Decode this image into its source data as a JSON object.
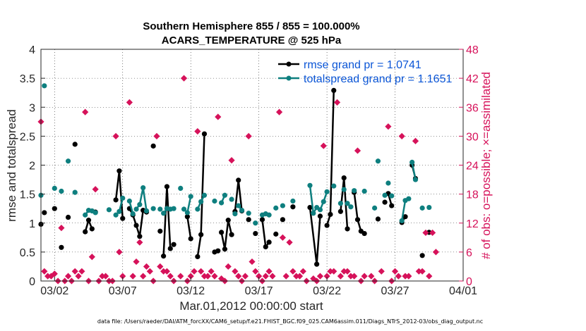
{
  "chart_data": {
    "type": "line",
    "title": [
      "Southern Hemisphere 855 / 855 = 100.000%",
      "ACARS_TEMPERATURE @ 525 hPa"
    ],
    "xlabel": "Mar.01,2012 00:00:00 start",
    "ylabel": "rmse and totalspread",
    "ylabel_right": "# of obs: o=possible; ×=assimilated",
    "xlim": [
      0,
      31
    ],
    "ylim": [
      0,
      4
    ],
    "ylim_right": [
      0,
      48
    ],
    "xticks": [
      {
        "v": 1,
        "label": "03/02"
      },
      {
        "v": 6,
        "label": "03/07"
      },
      {
        "v": 11,
        "label": "03/12"
      },
      {
        "v": 16,
        "label": "03/17"
      },
      {
        "v": 21,
        "label": "03/22"
      },
      {
        "v": 26,
        "label": "03/27"
      },
      {
        "v": 31,
        "label": "04/01"
      }
    ],
    "yticks": [
      "0",
      "0.5",
      "1",
      "1.5",
      "2",
      "2.5",
      "3",
      "3.5",
      "4"
    ],
    "yticks_right": [
      "0",
      "6",
      "12",
      "18",
      "24",
      "30",
      "36",
      "42",
      "48"
    ],
    "legend": [
      "rmse grand pr = 1.0741",
      "totalspread grand pr = 1.1651"
    ],
    "series": [
      {
        "name": "rmse",
        "color": "#000000",
        "segments": [
          [
            [
              0.0,
              0.98
            ]
          ],
          [
            [
              0.25,
              1.18
            ]
          ],
          [
            [
              1.0,
              1.25
            ]
          ],
          [
            [
              1.5,
              0.58
            ]
          ],
          [
            [
              2.0,
              1.1
            ]
          ],
          [
            [
              2.5,
              2.36
            ]
          ],
          [
            [
              3.25,
              0.85
            ],
            [
              3.5,
              1.05
            ],
            [
              3.75,
              0.9
            ]
          ],
          [
            [
              4.0,
              1.19
            ]
          ],
          [
            [
              5.5,
              1.4
            ],
            [
              5.75,
              1.9
            ],
            [
              6.0,
              1.08
            ]
          ],
          [
            [
              6.5,
              1.25
            ],
            [
              6.75,
              1.14
            ],
            [
              7.0,
              0.96
            ],
            [
              7.25,
              0.77
            ],
            [
              7.5,
              1.22
            ],
            [
              7.75,
              1.19
            ]
          ],
          [
            [
              8.25,
              2.33
            ]
          ],
          [
            [
              8.75,
              0.86
            ]
          ],
          [
            [
              9.0,
              0.43
            ],
            [
              9.25,
              1.63
            ],
            [
              9.5,
              0.56
            ]
          ],
          [
            [
              9.75,
              0.63
            ]
          ],
          [
            [
              10.75,
              1.11
            ],
            [
              11.0,
              0.73
            ]
          ],
          [
            [
              11.5,
              0.42
            ],
            [
              11.75,
              0.8
            ],
            [
              12.0,
              2.54
            ]
          ],
          [
            [
              12.75,
              0.5
            ],
            [
              13.0,
              0.52
            ]
          ],
          [
            [
              13.25,
              0.84
            ],
            [
              13.5,
              0.55
            ],
            [
              13.75,
              1.05
            ],
            [
              14.0,
              0.8
            ]
          ],
          [
            [
              14.25,
              1.2
            ],
            [
              14.5,
              1.74
            ],
            [
              14.75,
              1.21
            ]
          ],
          [
            [
              15.25,
              1.06
            ]
          ],
          [
            [
              15.75,
              0.82
            ]
          ],
          [
            [
              16.25,
              1.06
            ],
            [
              16.5,
              0.59
            ],
            [
              16.75,
              0.67
            ]
          ],
          [
            [
              17.25,
              0.81
            ]
          ],
          [
            [
              17.75,
              1.06
            ]
          ],
          [
            [
              18.5,
              1.28
            ]
          ],
          [
            [
              19.75,
              1.27
            ],
            [
              20.25,
              0.29
            ],
            [
              20.5,
              1.12
            ]
          ],
          [
            [
              21.0,
              0.96
            ],
            [
              21.25,
              1.15
            ],
            [
              21.5,
              3.29
            ]
          ],
          [
            [
              22.0,
              1.2
            ],
            [
              22.25,
              1.78
            ],
            [
              22.5,
              0.9
            ]
          ],
          [
            [
              23.0,
              1.53
            ],
            [
              23.25,
              1.06
            ],
            [
              23.5,
              0.86
            ]
          ],
          [
            [
              23.75,
              0.82
            ]
          ],
          [
            [
              24.75,
              1.07
            ]
          ],
          [
            [
              25.25,
              1.36
            ]
          ],
          [
            [
              25.5,
              1.51
            ],
            [
              25.75,
              1.3
            ]
          ],
          [
            [
              26.5,
              1.01
            ],
            [
              26.75,
              1.11
            ]
          ],
          [
            [
              27.25,
              2.0
            ],
            [
              27.5,
              1.77
            ]
          ],
          [
            [
              28.0,
              0.44
            ]
          ],
          [
            [
              28.5,
              0.84
            ]
          ]
        ]
      },
      {
        "name": "totalspread",
        "color": "#0e7f7f",
        "segments": [
          [
            [
              0.0,
              1.48
            ]
          ],
          [
            [
              0.25,
              3.37
            ]
          ],
          [
            [
              1.0,
              1.6
            ]
          ],
          [
            [
              1.5,
              1.55
            ]
          ],
          [
            [
              2.0,
              2.07
            ]
          ],
          [
            [
              2.5,
              1.53
            ]
          ],
          [
            [
              3.25,
              1.14
            ],
            [
              3.5,
              1.22
            ],
            [
              3.75,
              1.21
            ]
          ],
          [
            [
              4.0,
              1.18
            ]
          ],
          [
            [
              5.0,
              1.23
            ]
          ],
          [
            [
              5.5,
              1.14
            ],
            [
              5.75,
              1.2
            ],
            [
              6.0,
              1.43
            ]
          ],
          [
            [
              6.5,
              1.38
            ],
            [
              6.75,
              1.16
            ]
          ],
          [
            [
              7.0,
              1.24
            ],
            [
              7.25,
              1.32
            ],
            [
              7.5,
              1.61
            ],
            [
              7.75,
              1.21
            ]
          ],
          [
            [
              8.25,
              1.25
            ]
          ],
          [
            [
              8.75,
              1.24
            ]
          ],
          [
            [
              9.0,
              1.17
            ],
            [
              9.25,
              1.25
            ]
          ],
          [
            [
              9.5,
              1.24
            ]
          ],
          [
            [
              9.75,
              1.25
            ]
          ],
          [
            [
              10.25,
              1.6
            ]
          ],
          [
            [
              10.5,
              1.24
            ]
          ],
          [
            [
              10.75,
              1.18
            ],
            [
              11.0,
              1.46
            ]
          ],
          [
            [
              11.5,
              1.24
            ],
            [
              11.75,
              1.37
            ],
            [
              12.0,
              1.48
            ]
          ],
          [
            [
              12.75,
              1.38
            ]
          ],
          [
            [
              13.25,
              1.35
            ],
            [
              13.5,
              1.48
            ]
          ],
          [
            [
              14.0,
              1.41
            ]
          ],
          [
            [
              14.25,
              1.16
            ]
          ],
          [
            [
              14.5,
              1.3
            ],
            [
              14.75,
              1.22
            ]
          ],
          [
            [
              15.25,
              1.17
            ]
          ],
          [
            [
              15.75,
              1.0
            ]
          ],
          [
            [
              16.25,
              1.14
            ],
            [
              16.5,
              1.16
            ]
          ],
          [
            [
              16.75,
              1.14
            ]
          ],
          [
            [
              17.25,
              1.26
            ]
          ],
          [
            [
              17.75,
              1.3
            ]
          ],
          [
            [
              18.5,
              1.38
            ]
          ],
          [
            [
              19.75,
              1.65
            ],
            [
              20.0,
              1.17
            ],
            [
              20.25,
              1.27
            ]
          ],
          [
            [
              20.5,
              1.23
            ],
            [
              20.75,
              1.37
            ],
            [
              21.0,
              1.54
            ]
          ],
          [
            [
              21.5,
              1.64
            ]
          ],
          [
            [
              22.0,
              1.34
            ]
          ],
          [
            [
              22.25,
              1.58
            ]
          ],
          [
            [
              22.5,
              1.34
            ],
            [
              22.75,
              1.28
            ]
          ],
          [
            [
              23.0,
              1.56
            ]
          ],
          [
            [
              23.75,
              1.55
            ]
          ],
          [
            [
              24.5,
              1.26
            ]
          ],
          [
            [
              24.75,
              2.07
            ]
          ],
          [
            [
              25.25,
              1.48
            ]
          ],
          [
            [
              25.5,
              1.69
            ]
          ],
          [
            [
              25.75,
              1.47
            ]
          ],
          [
            [
              26.5,
              1.04
            ],
            [
              26.75,
              1.39
            ],
            [
              27.0,
              1.42
            ]
          ],
          [
            [
              27.25,
              2.05
            ],
            [
              27.5,
              1.75
            ]
          ],
          [
            [
              28.0,
              1.26
            ]
          ],
          [
            [
              28.5,
              1.27
            ]
          ]
        ]
      }
    ],
    "obs_possible": [
      [
        0.0,
        33
      ],
      [
        0.25,
        2
      ],
      [
        0.5,
        1
      ],
      [
        0.75,
        1
      ],
      [
        1.0,
        1.5
      ],
      [
        1.25,
        0
      ],
      [
        1.5,
        11
      ],
      [
        1.75,
        0
      ],
      [
        2.0,
        1
      ],
      [
        2.25,
        0
      ],
      [
        2.5,
        2
      ],
      [
        2.75,
        1
      ],
      [
        3.0,
        2
      ],
      [
        3.25,
        35
      ],
      [
        3.5,
        0
      ],
      [
        3.75,
        5
      ],
      [
        4.0,
        19
      ],
      [
        4.25,
        0
      ],
      [
        4.5,
        1
      ],
      [
        4.75,
        1
      ],
      [
        5.0,
        0
      ],
      [
        5.25,
        0
      ],
      [
        5.5,
        30
      ],
      [
        5.75,
        6
      ],
      [
        6.0,
        1
      ],
      [
        6.5,
        37
      ],
      [
        6.75,
        1
      ],
      [
        7.0,
        4
      ],
      [
        7.25,
        8
      ],
      [
        7.5,
        1
      ],
      [
        7.75,
        3
      ],
      [
        8.0,
        2
      ],
      [
        8.25,
        0
      ],
      [
        8.5,
        30
      ],
      [
        8.75,
        3
      ],
      [
        9.0,
        2
      ],
      [
        9.25,
        2
      ],
      [
        9.5,
        1
      ],
      [
        9.75,
        0
      ],
      [
        10.25,
        1
      ],
      [
        10.5,
        42
      ],
      [
        10.75,
        0
      ],
      [
        11.0,
        1
      ],
      [
        11.25,
        2
      ],
      [
        11.5,
        31
      ],
      [
        11.75,
        2
      ],
      [
        12.0,
        1
      ],
      [
        12.25,
        1
      ],
      [
        12.5,
        2
      ],
      [
        12.75,
        1
      ],
      [
        13.0,
        34
      ],
      [
        13.25,
        0.5
      ],
      [
        13.5,
        0
      ],
      [
        13.75,
        3
      ],
      [
        14.0,
        25
      ],
      [
        14.25,
        2
      ],
      [
        14.5,
        1
      ],
      [
        14.75,
        0
      ],
      [
        15.0,
        1
      ],
      [
        15.25,
        30
      ],
      [
        15.5,
        4
      ],
      [
        15.75,
        2
      ],
      [
        16.0,
        1
      ],
      [
        16.25,
        0
      ],
      [
        16.5,
        1
      ],
      [
        16.75,
        2
      ],
      [
        17.0,
        1
      ],
      [
        17.5,
        35
      ],
      [
        17.75,
        9
      ],
      [
        18.0,
        1
      ],
      [
        18.25,
        8
      ],
      [
        18.5,
        2
      ],
      [
        18.75,
        1
      ],
      [
        19.0,
        1
      ],
      [
        19.25,
        2
      ],
      [
        19.5,
        0
      ],
      [
        20.0,
        0.5
      ],
      [
        20.25,
        0
      ],
      [
        20.5,
        1
      ],
      [
        20.75,
        28
      ],
      [
        21.0,
        1
      ],
      [
        21.25,
        2
      ],
      [
        21.5,
        2
      ],
      [
        21.75,
        37
      ],
      [
        22.0,
        1
      ],
      [
        22.25,
        2
      ],
      [
        22.5,
        2
      ],
      [
        22.75,
        1
      ],
      [
        23.0,
        1
      ],
      [
        23.25,
        27
      ],
      [
        23.5,
        0
      ],
      [
        23.75,
        1
      ],
      [
        24.25,
        1
      ],
      [
        24.5,
        0
      ],
      [
        25.0,
        2
      ],
      [
        25.5,
        32
      ],
      [
        25.75,
        0
      ],
      [
        26.0,
        2
      ],
      [
        26.25,
        1
      ],
      [
        26.5,
        30
      ],
      [
        26.75,
        1
      ],
      [
        27.0,
        1
      ],
      [
        27.5,
        29
      ],
      [
        27.75,
        2
      ],
      [
        28.0,
        2
      ],
      [
        28.25,
        10
      ],
      [
        28.5,
        1
      ],
      [
        28.75,
        10
      ],
      [
        29.0,
        6
      ]
    ]
  },
  "footer": "data file: /Users/raeder/DAI/ATM_forcXX/CAM6_setup/f.e21.FHIST_BGC.f09_025.CAM6assim.011/Diags_NTrS_2012-03/obs_diag_output.nc"
}
